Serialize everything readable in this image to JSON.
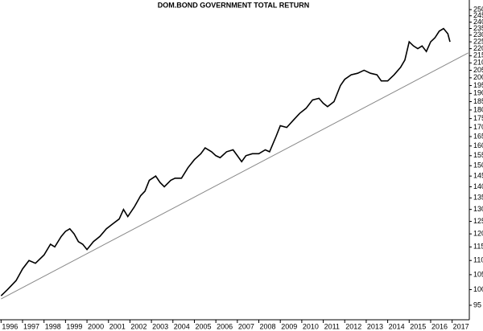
{
  "chart_data": {
    "type": "line",
    "title": "DOM.BOND GOVERNMENT TOTAL RETURN",
    "log_scale": true,
    "x": [
      1996.0,
      1996.3,
      1996.7,
      1997.0,
      1997.3,
      1997.6,
      1998.0,
      1998.3,
      1998.5,
      1998.8,
      1999.0,
      1999.2,
      1999.4,
      1999.6,
      1999.8,
      2000.0,
      2000.3,
      2000.6,
      2000.9,
      2001.2,
      2001.5,
      2001.7,
      2001.9,
      2002.2,
      2002.5,
      2002.7,
      2002.9,
      2003.2,
      2003.4,
      2003.6,
      2003.9,
      2004.1,
      2004.4,
      2004.7,
      2005.0,
      2005.3,
      2005.5,
      2005.8,
      2006.0,
      2006.2,
      2006.5,
      2006.8,
      2007.0,
      2007.2,
      2007.4,
      2007.7,
      2008.0,
      2008.3,
      2008.5,
      2008.8,
      2009.0,
      2009.3,
      2009.6,
      2009.9,
      2010.2,
      2010.5,
      2010.8,
      2011.0,
      2011.2,
      2011.5,
      2011.8,
      2012.0,
      2012.3,
      2012.6,
      2012.9,
      2013.2,
      2013.5,
      2013.7,
      2014.0,
      2014.3,
      2014.6,
      2014.8,
      2015.0,
      2015.2,
      2015.4,
      2015.6,
      2015.8,
      2016.0,
      2016.2,
      2016.4,
      2016.6,
      2016.8,
      2016.9
    ],
    "values": [
      98,
      100,
      103,
      107,
      110,
      109,
      112,
      116,
      115,
      119,
      121,
      122,
      120,
      117,
      116,
      114,
      117,
      119,
      122,
      124,
      126,
      130,
      127,
      131,
      136,
      138,
      143,
      145,
      142,
      140,
      143,
      144,
      144,
      149,
      153,
      156,
      159,
      157,
      155,
      154,
      157,
      158,
      155,
      152,
      155,
      156,
      156,
      158,
      157,
      165,
      171,
      170,
      174,
      178,
      181,
      186,
      187,
      184,
      182,
      185,
      195,
      199,
      202,
      203,
      205,
      203,
      202,
      198,
      198,
      202,
      207,
      212,
      225,
      222,
      220,
      222,
      218,
      225,
      228,
      233,
      235,
      231,
      225
    ],
    "color": "#000000",
    "trendline": {
      "x": [
        1996.0,
        2017.75
      ],
      "values": [
        97,
        217
      ],
      "color": "#888888"
    },
    "xlim": [
      1995.95,
      2017.8
    ],
    "xticks": [
      1996,
      1997,
      1998,
      1999,
      2000,
      2001,
      2002,
      2003,
      2004,
      2005,
      2006,
      2007,
      2008,
      2009,
      2010,
      2011,
      2012,
      2013,
      2014,
      2015,
      2016,
      2017
    ],
    "ylim": [
      90.6,
      258
    ],
    "yticks": [
      95,
      100,
      105,
      110,
      115,
      120,
      125,
      130,
      135,
      140,
      145,
      150,
      155,
      160,
      165,
      170,
      175,
      180,
      185,
      190,
      195,
      200,
      205,
      210,
      215,
      220,
      225,
      230,
      235,
      240,
      245,
      250
    ]
  }
}
